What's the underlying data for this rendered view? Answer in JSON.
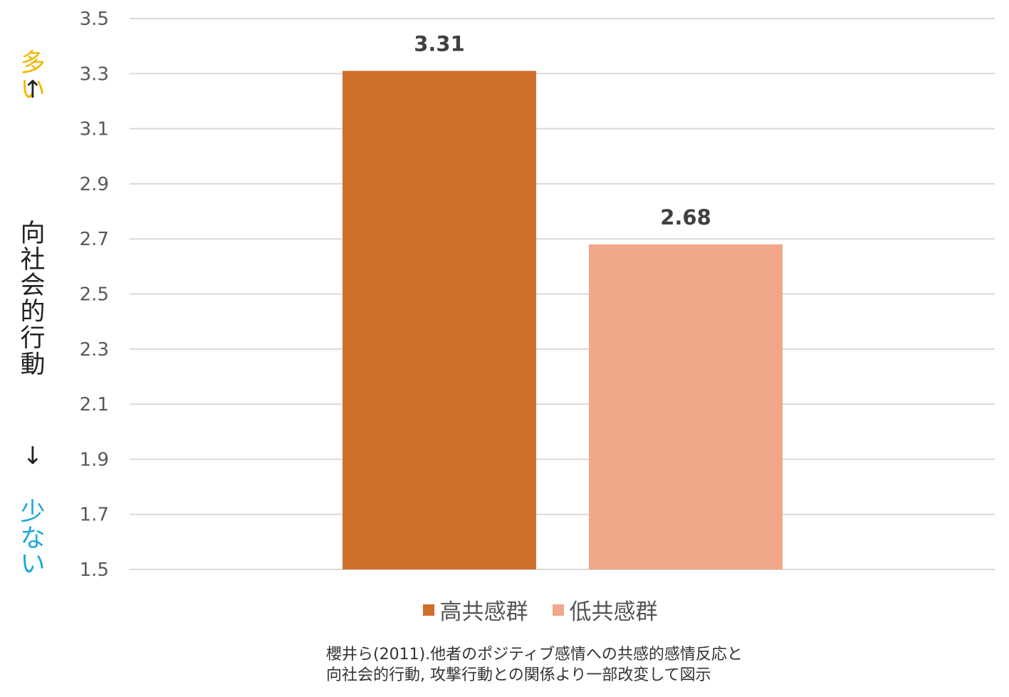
{
  "chart_data": {
    "type": "bar",
    "categories": [
      "高共感群",
      "低共感群"
    ],
    "values": [
      3.31,
      2.68
    ],
    "value_labels": [
      "3.31",
      "2.68"
    ],
    "colors": [
      "#D06F2A",
      "#F0A78A"
    ],
    "ylim": [
      1.5,
      3.5
    ],
    "yticks": [
      "1.5",
      "1.7",
      "1.9",
      "2.1",
      "2.3",
      "2.5",
      "2.7",
      "2.9",
      "3.1",
      "3.3",
      "3.5"
    ],
    "ylabel": "向社会的行動",
    "ylabel_top": "多い",
    "ylabel_bottom": "少ない",
    "ylabel_top_color": "#F2B800",
    "ylabel_bottom_color": "#1AA8E0",
    "grid": true,
    "legend_position": "bottom",
    "legend": [
      "高共感群",
      "低共感群"
    ]
  },
  "source_note_lines": [
    "櫻井ら(2011).他者のポジティブ感情への共感的感情反応と",
    "向社会的行動, 攻撃行動との関係より一部改変して図示"
  ]
}
